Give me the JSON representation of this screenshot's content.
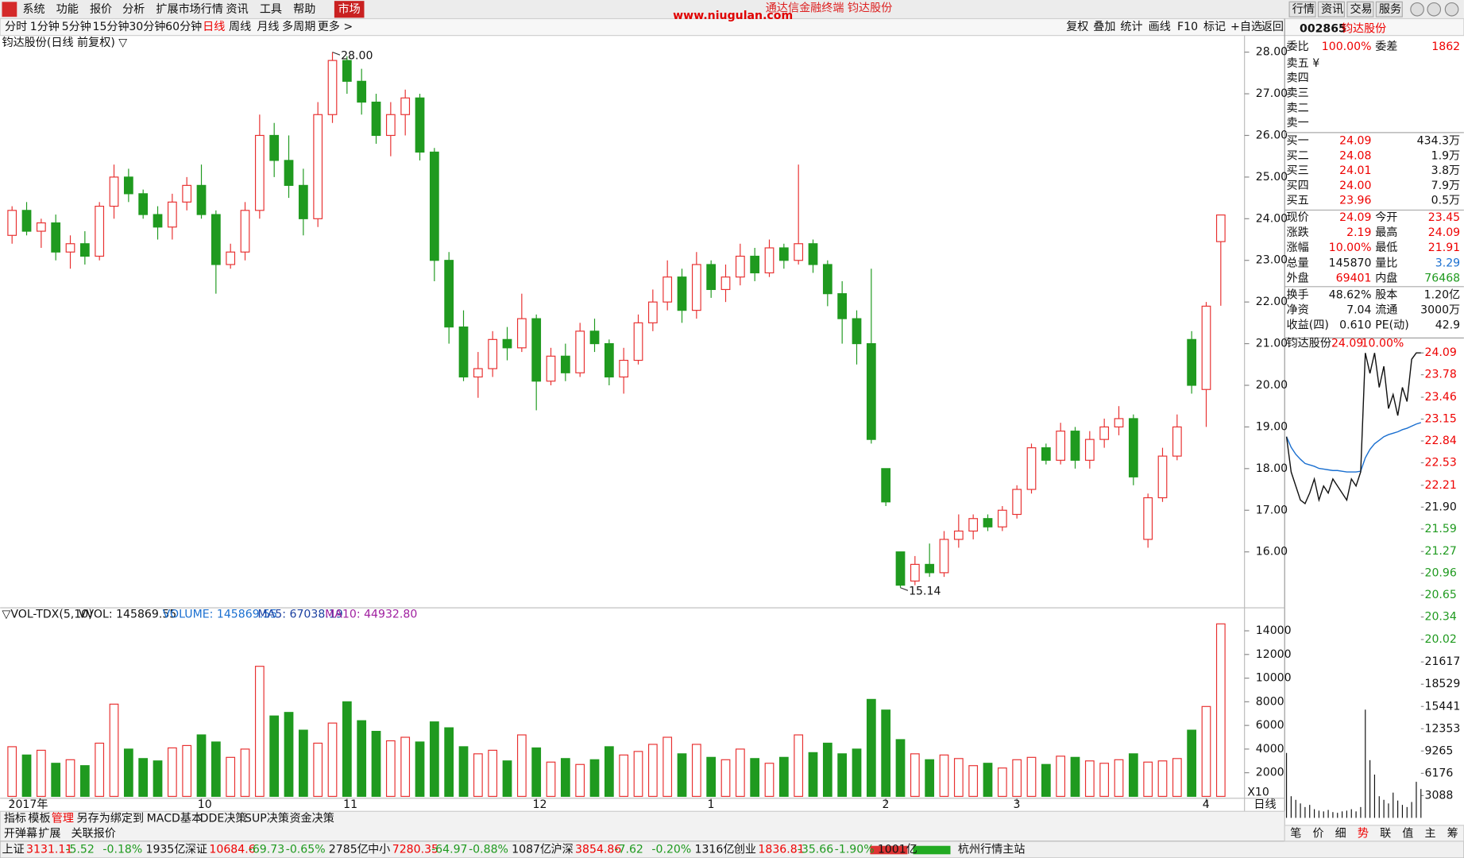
{
  "window_title": "通达信金融终端 钧达股份",
  "watermark": "www.niugulan.com",
  "menu": [
    "系统",
    "功能",
    "报价",
    "分析",
    "扩展市场行情",
    "资讯",
    "工具",
    "帮助"
  ],
  "market_tab": "市场",
  "top_right": [
    "行情",
    "资讯",
    "交易",
    "服务"
  ],
  "periods": [
    "分时",
    "1分钟",
    "5分钟",
    "15分钟",
    "30分钟",
    "60分钟",
    "日线",
    "周线",
    "月线",
    "多周期",
    "更多 >"
  ],
  "tools": [
    "复权",
    "叠加",
    "统计",
    "画线",
    "F10",
    "标记",
    "+自选",
    "返回"
  ],
  "chart_data": {
    "type": "candlestick",
    "title": "钧达股份(日线 前复权) ▽",
    "up_color": "#e83030",
    "down_color": "#1f9a1f",
    "ylim": [
      14.68,
      28.4
    ],
    "yticks": [
      {
        "value": 16,
        "label": "16.00"
      },
      {
        "value": 17,
        "label": "17.00"
      },
      {
        "value": 18,
        "label": "18.00"
      },
      {
        "value": 19,
        "label": "19.00"
      },
      {
        "value": 20,
        "label": "20.00"
      },
      {
        "value": 21,
        "label": "21.00"
      },
      {
        "value": 22,
        "label": "22.00"
      },
      {
        "value": 23,
        "label": "23.00"
      },
      {
        "value": 24,
        "label": "24.00"
      },
      {
        "value": 25,
        "label": "25.00"
      },
      {
        "value": 26,
        "label": "26.00"
      },
      {
        "value": 27,
        "label": "27.00"
      },
      {
        "value": 28,
        "label": "28.00"
      }
    ],
    "annotations": [
      {
        "index": 22,
        "value": 28,
        "label": "28.00"
      },
      {
        "index": 61,
        "value": 15.14,
        "label": "15.14"
      }
    ],
    "categories": [
      "2017年",
      null,
      null,
      null,
      null,
      null,
      null,
      null,
      null,
      null,
      null,
      null,
      null,
      "10",
      null,
      null,
      null,
      null,
      null,
      null,
      null,
      null,
      null,
      "11",
      null,
      null,
      null,
      null,
      null,
      null,
      null,
      null,
      null,
      null,
      null,
      null,
      "12",
      null,
      null,
      null,
      null,
      null,
      null,
      null,
      null,
      null,
      null,
      null,
      "1",
      null,
      null,
      null,
      null,
      null,
      null,
      null,
      null,
      null,
      null,
      null,
      "2",
      null,
      null,
      null,
      null,
      null,
      null,
      null,
      null,
      "3",
      null,
      null,
      null,
      null,
      null,
      null,
      null,
      null,
      null,
      null,
      null,
      null,
      "4",
      null
    ],
    "open": [
      23.6,
      24.2,
      23.7,
      23.9,
      23.2,
      23.4,
      23.1,
      24.3,
      25.0,
      24.6,
      24.1,
      23.8,
      24.4,
      24.8,
      24.1,
      22.9,
      23.2,
      24.2,
      26.0,
      25.4,
      24.8,
      24.0,
      26.5,
      27.8,
      27.3,
      26.8,
      26.0,
      26.5,
      26.9,
      25.6,
      23.0,
      21.4,
      20.2,
      20.4,
      21.1,
      20.9,
      21.6,
      20.1,
      20.7,
      20.3,
      21.3,
      21.0,
      20.2,
      20.6,
      21.5,
      22.0,
      22.6,
      21.8,
      22.9,
      22.3,
      22.6,
      23.1,
      22.7,
      23.3,
      23.0,
      23.4,
      22.9,
      22.2,
      21.6,
      21.0,
      18.0,
      16.0,
      15.3,
      15.7,
      15.5,
      16.3,
      16.5,
      16.8,
      16.6,
      16.9,
      17.5,
      18.5,
      18.2,
      18.9,
      18.2,
      18.7,
      19.0,
      19.2,
      16.3,
      17.3,
      18.3,
      21.1,
      19.9,
      23.45
    ],
    "high": [
      24.3,
      24.4,
      24.0,
      24.1,
      23.6,
      23.7,
      24.4,
      25.3,
      25.2,
      24.7,
      24.3,
      24.6,
      25.0,
      25.3,
      24.2,
      23.4,
      24.4,
      26.5,
      26.3,
      26.0,
      25.2,
      26.8,
      28.0,
      27.9,
      27.6,
      27.0,
      26.8,
      27.1,
      27.0,
      25.7,
      23.2,
      21.8,
      20.8,
      21.3,
      21.4,
      22.2,
      21.7,
      20.9,
      21.0,
      21.5,
      21.6,
      21.1,
      20.9,
      21.7,
      22.3,
      23.0,
      22.8,
      23.2,
      23.0,
      22.9,
      23.4,
      23.3,
      23.5,
      23.4,
      25.3,
      23.5,
      23.0,
      22.5,
      21.8,
      22.8,
      18.0,
      16.0,
      15.9,
      16.2,
      16.5,
      16.9,
      16.9,
      16.9,
      17.1,
      17.6,
      18.6,
      18.6,
      19.1,
      19.0,
      18.9,
      19.2,
      19.5,
      19.3,
      17.4,
      18.5,
      19.3,
      21.3,
      22.0,
      24.09
    ],
    "low": [
      23.4,
      23.6,
      23.3,
      23.0,
      22.8,
      22.9,
      23.0,
      24.0,
      24.4,
      24.0,
      23.5,
      23.5,
      24.2,
      24.0,
      22.2,
      22.8,
      23.0,
      24.0,
      25.0,
      24.5,
      23.6,
      23.8,
      26.3,
      27.0,
      26.5,
      25.8,
      25.5,
      26.0,
      25.4,
      22.5,
      21.0,
      20.1,
      19.7,
      20.2,
      20.6,
      20.8,
      19.4,
      20.0,
      20.1,
      20.2,
      20.8,
      20.0,
      19.8,
      20.5,
      21.3,
      21.8,
      21.5,
      21.6,
      22.1,
      22.0,
      22.4,
      22.5,
      22.6,
      22.8,
      22.9,
      22.7,
      21.9,
      21.0,
      20.5,
      18.6,
      17.1,
      15.14,
      15.2,
      15.4,
      15.4,
      16.1,
      16.3,
      16.5,
      16.5,
      16.8,
      17.4,
      18.1,
      18.1,
      18.0,
      18.0,
      18.5,
      18.8,
      17.6,
      16.1,
      17.2,
      18.2,
      19.8,
      19.0,
      21.91
    ],
    "close": [
      24.2,
      23.7,
      23.9,
      23.2,
      23.4,
      23.1,
      24.3,
      25.0,
      24.6,
      24.1,
      23.8,
      24.4,
      24.8,
      24.1,
      22.9,
      23.2,
      24.2,
      26.0,
      25.4,
      24.8,
      24.0,
      26.5,
      27.8,
      27.3,
      26.8,
      26.0,
      26.5,
      26.9,
      25.6,
      23.0,
      21.4,
      20.2,
      20.4,
      21.1,
      20.9,
      21.6,
      20.1,
      20.7,
      20.3,
      21.3,
      21.0,
      20.2,
      20.6,
      21.5,
      22.0,
      22.6,
      21.8,
      22.9,
      22.3,
      22.6,
      23.1,
      22.7,
      23.3,
      23.0,
      23.4,
      22.9,
      22.2,
      21.6,
      21.0,
      18.7,
      17.2,
      15.2,
      15.7,
      15.5,
      16.3,
      16.5,
      16.8,
      16.6,
      17.0,
      17.5,
      18.5,
      18.2,
      18.9,
      18.2,
      18.7,
      19.0,
      19.2,
      17.8,
      17.3,
      18.3,
      19.0,
      20.0,
      21.9,
      24.09
    ]
  },
  "volume_chart": {
    "type": "bar",
    "header": [
      "▽VOL-TDX(5,10)",
      "VVOL: 145869.55",
      "VOLUME: 145869.55",
      "MA5: 67038.19",
      "MA10: 44932.80"
    ],
    "multiplier": "X10",
    "ylim": [
      0,
      15000
    ],
    "yticks": [
      2000,
      4000,
      6000,
      8000,
      10000,
      12000,
      14000
    ],
    "values": [
      4200,
      3500,
      3900,
      2800,
      3100,
      2600,
      4500,
      7800,
      4000,
      3200,
      3000,
      4100,
      4300,
      5200,
      4600,
      3300,
      4000,
      11000,
      6800,
      7100,
      5600,
      4500,
      6200,
      8000,
      6400,
      5500,
      4700,
      5000,
      4600,
      6300,
      5800,
      4200,
      3600,
      3900,
      3000,
      5200,
      4100,
      2900,
      3200,
      2700,
      3100,
      4200,
      3500,
      3800,
      4400,
      5000,
      3600,
      4400,
      3300,
      3100,
      4000,
      3200,
      2800,
      3300,
      5200,
      3700,
      4500,
      3600,
      4000,
      8200,
      7300,
      4800,
      3600,
      3100,
      3500,
      3200,
      2600,
      2800,
      2400,
      3100,
      3300,
      2700,
      3400,
      3300,
      3000,
      2800,
      3100,
      3600,
      2900,
      3000,
      3200,
      5600,
      7600,
      14587
    ]
  },
  "period_label": "日线",
  "quote": {
    "code": "002865",
    "name": "钧达股份",
    "rows": [
      [
        "委比",
        "100.00%",
        "委差",
        "1862"
      ]
    ],
    "sell": [
      "卖五 ¥",
      "卖四",
      "卖三",
      "卖二",
      "卖一"
    ],
    "buy": [
      [
        "买一",
        "24.09",
        "434.3万"
      ],
      [
        "买二",
        "24.08",
        "1.9万"
      ],
      [
        "买三",
        "24.01",
        "3.8万"
      ],
      [
        "买四",
        "24.00",
        "7.9万"
      ],
      [
        "买五",
        "23.96",
        "0.5万"
      ]
    ],
    "stats": [
      [
        "现价",
        "24.09",
        "今开",
        "23.45"
      ],
      [
        "涨跌",
        "2.19",
        "最高",
        "24.09"
      ],
      [
        "涨幅",
        "10.00%",
        "最低",
        "21.91"
      ],
      [
        "总量",
        "145870",
        "量比",
        "3.29"
      ],
      [
        "外盘",
        "69401",
        "内盘",
        "76468"
      ]
    ],
    "finance": [
      [
        "换手",
        "48.62%",
        "股本",
        "1.20亿"
      ],
      [
        "净资",
        "7.04",
        "流通",
        "3000万"
      ],
      [
        "收益(四)",
        "0.610",
        "PE(动)",
        "42.9"
      ]
    ]
  },
  "intraday": {
    "type": "line",
    "header": [
      "钧达股份",
      "24.09",
      "10.00%"
    ],
    "ylim": [
      20.02,
      24.09
    ],
    "yticks": [
      24.09,
      23.78,
      23.46,
      23.15,
      22.84,
      22.53,
      22.21,
      {
        "value": 21.9,
        "label": "21.90"
      },
      21.59,
      21.27,
      20.96,
      20.65,
      20.34,
      20.02
    ],
    "price": [
      22.9,
      22.4,
      22.2,
      22.0,
      21.95,
      22.1,
      22.3,
      22.0,
      22.2,
      22.1,
      22.3,
      22.2,
      22.1,
      22.0,
      22.3,
      22.2,
      22.4,
      24.09,
      23.8,
      24.09,
      23.6,
      23.9,
      23.3,
      23.5,
      23.2,
      23.6,
      23.4,
      24.0,
      24.09,
      24.09
    ],
    "avg": [
      22.9,
      22.75,
      22.65,
      22.58,
      22.52,
      22.5,
      22.48,
      22.45,
      22.44,
      22.43,
      22.42,
      22.42,
      22.41,
      22.4,
      22.4,
      22.4,
      22.41,
      22.6,
      22.72,
      22.8,
      22.85,
      22.9,
      22.93,
      22.95,
      22.97,
      23.0,
      23.02,
      23.05,
      23.08,
      23.1
    ],
    "vlim": [
      0,
      21617
    ],
    "vticks": [
      21617,
      18529,
      15441,
      12353,
      9265,
      6176,
      3088
    ],
    "volume": [
      9000,
      3000,
      2500,
      2000,
      1500,
      1800,
      1200,
      1000,
      900,
      1100,
      800,
      700,
      900,
      1000,
      1200,
      900,
      1500,
      15000,
      8000,
      6000,
      3000,
      2500,
      2000,
      3500,
      2400,
      1800,
      1500,
      2200,
      5000,
      4000
    ],
    "tabs": [
      "笔",
      "价",
      "细",
      "势",
      "联",
      "值",
      "主",
      "筹"
    ]
  },
  "bottom_tabs": [
    "指标",
    "模板",
    "管理",
    "另存为",
    "绑定到",
    "MACD基本",
    "DDE决策",
    "SUP决策",
    "资金决策"
  ],
  "bottom_tabs2": [
    "开弹幕",
    "扩展",
    "关联报价"
  ],
  "status": [
    [
      "上证",
      "3131.11",
      "-5.52",
      "-0.18%",
      "1935亿"
    ],
    [
      "深证",
      "10684.6",
      "-69.73",
      "-0.65%",
      "2785亿"
    ],
    [
      "中小",
      "7280.35",
      "-64.97",
      "-0.88%",
      "1087亿"
    ],
    [
      "沪深",
      "3854.86",
      "-7.62",
      "-0.20%",
      "1316亿"
    ],
    [
      "创业",
      "1836.81",
      "-35.66",
      "-1.90%",
      "1001亿"
    ]
  ],
  "server": "杭州行情主站"
}
